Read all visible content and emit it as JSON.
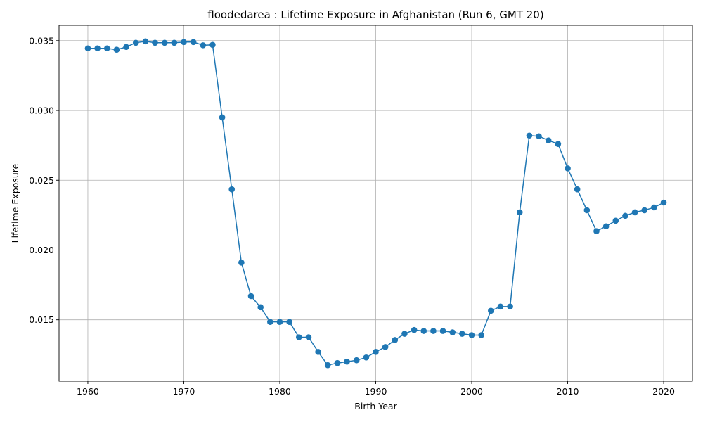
{
  "chart_data": {
    "type": "line",
    "title": "floodedarea : Lifetime Exposure in Afghanistan (Run 6, GMT 20)",
    "xlabel": "Birth Year",
    "ylabel": "Lifetime Exposure",
    "xlim": [
      1957,
      2023
    ],
    "ylim": [
      0.0106,
      0.0361
    ],
    "xticks": [
      1960,
      1970,
      1980,
      1990,
      2000,
      2010,
      2020
    ],
    "yticks": [
      0.015,
      0.02,
      0.025,
      0.03,
      0.035
    ],
    "ytick_labels": [
      "0.015",
      "0.020",
      "0.025",
      "0.030",
      "0.035"
    ],
    "grid": true,
    "color": "#1f77b4",
    "series": [
      {
        "x": [
          1960,
          1961,
          1962,
          1963,
          1964,
          1965,
          1966,
          1967,
          1968,
          1969,
          1970,
          1971,
          1972,
          1973,
          1974,
          1975,
          1976,
          1977,
          1978,
          1979,
          1980,
          1981,
          1982,
          1983,
          1984,
          1985,
          1986,
          1987,
          1988,
          1989,
          1990,
          1991,
          1992,
          1993,
          1994,
          1995,
          1996,
          1997,
          1998,
          1999,
          2000,
          2001,
          2002,
          2003,
          2004,
          2005,
          2006,
          2007,
          2008,
          2009,
          2010,
          2011,
          2012,
          2013,
          2014,
          2015,
          2016,
          2017,
          2018,
          2019,
          2020
        ],
        "values": [
          0.03445,
          0.03445,
          0.03445,
          0.03435,
          0.03455,
          0.03485,
          0.03495,
          0.03485,
          0.03485,
          0.03485,
          0.0349,
          0.0349,
          0.03467,
          0.0347,
          0.0295,
          0.02435,
          0.0191,
          0.0167,
          0.0159,
          0.01485,
          0.01485,
          0.01485,
          0.01375,
          0.01375,
          0.0127,
          0.01175,
          0.0119,
          0.012,
          0.0121,
          0.0123,
          0.0127,
          0.01305,
          0.01355,
          0.014,
          0.01427,
          0.0142,
          0.0142,
          0.0142,
          0.0141,
          0.014,
          0.0139,
          0.0139,
          0.01565,
          0.01595,
          0.01595,
          0.0227,
          0.0282,
          0.02815,
          0.02785,
          0.0276,
          0.02585,
          0.02435,
          0.02285,
          0.02135,
          0.0217,
          0.0221,
          0.02245,
          0.0227,
          0.02285,
          0.02305,
          0.0234
        ]
      }
    ]
  }
}
